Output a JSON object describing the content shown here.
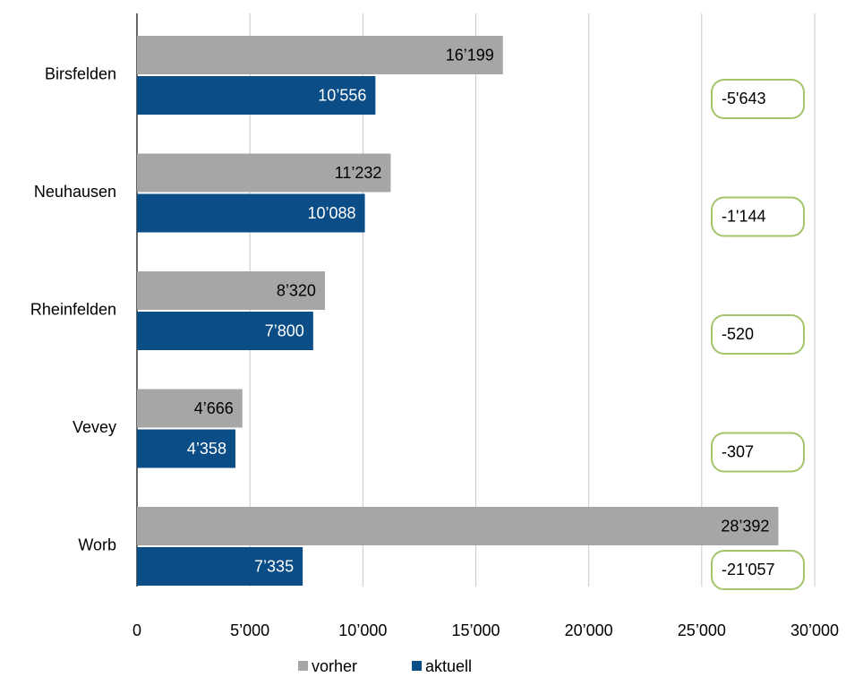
{
  "chart_data": {
    "type": "bar",
    "orientation": "horizontal",
    "categories": [
      "Birsfelden",
      "Neuhausen",
      "Rheinfelden",
      "Vevey",
      "Worb"
    ],
    "series": [
      {
        "name": "vorher",
        "color": "#a6a6a6",
        "values": [
          16199,
          11232,
          8320,
          4666,
          28392
        ],
        "value_labels": [
          "16’199",
          "11’232",
          "8’320",
          "4’666",
          "28’392"
        ]
      },
      {
        "name": "aktuell",
        "color": "#0b4d87",
        "values": [
          10556,
          10088,
          7800,
          4358,
          7335
        ],
        "value_labels": [
          "10’556",
          "10’088",
          "7’800",
          "4’358",
          "7’335"
        ]
      }
    ],
    "annotations": [
      "-5'643",
      "-1'144",
      "-520",
      "-307",
      "-21'057"
    ],
    "annotation_color": "#a4c46a",
    "xlim": [
      0,
      30000
    ],
    "xticks": [
      0,
      {
        "value": 5000,
        "label": "5’000"
      },
      {
        "value": 10000,
        "label": "10’000"
      },
      {
        "value": 15000,
        "label": "15’000"
      },
      {
        "value": 20000,
        "label": "20’000"
      },
      {
        "value": 25000,
        "label": "25’000"
      },
      {
        "value": 30000,
        "label": "30’000"
      }
    ],
    "grid": true,
    "legend": "bottom"
  }
}
